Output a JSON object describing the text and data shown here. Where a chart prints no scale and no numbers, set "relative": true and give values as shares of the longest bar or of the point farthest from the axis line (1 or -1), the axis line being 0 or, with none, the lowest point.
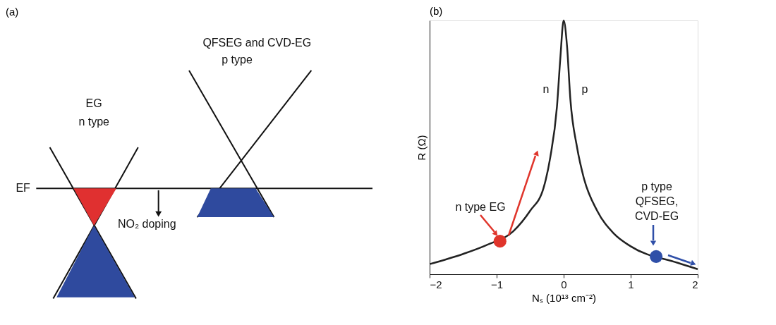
{
  "chart_data": [
    {
      "type": "other",
      "title": "(a)",
      "annotations": [
        "QFSEG and CVD-EG",
        "p type",
        "EG",
        "n type",
        "EF",
        "NO₂ doping"
      ]
    },
    {
      "type": "line",
      "title": "(b)",
      "xlabel": "Nₛ (10¹³ cm⁻²)",
      "ylabel": "R (Ω)",
      "relative": true,
      "xlim": [
        -2,
        2
      ],
      "xticks": [
        {
          "value": -2,
          "label": "−2"
        },
        {
          "value": -1,
          "label": "−1"
        },
        0,
        1,
        2
      ],
      "grid": false,
      "series": [
        {
          "type": "line",
          "color": "#222222",
          "x": [
            -2,
            -1.5,
            -1.15,
            -0.75,
            -0.5,
            -0.3,
            -0.2,
            -0.1,
            -0.05,
            0,
            0.05,
            0.1,
            0.2,
            0.3,
            0.5,
            0.75,
            1,
            1.7,
            2
          ],
          "values": [
            0.04,
            0.08,
            0.115,
            0.17,
            0.25,
            0.34,
            0.46,
            0.66,
            0.85,
            1,
            0.9,
            0.69,
            0.5,
            0.38,
            0.25,
            0.16,
            0.11,
            0.045,
            0.02
          ]
        },
        {
          "type": "scatter",
          "color": "#e0352b",
          "x": [
            -0.95
          ],
          "values": [
            0.13
          ],
          "marker": "circle"
        },
        {
          "type": "scatter",
          "color": "#2f4fa8",
          "x": [
            1.38
          ],
          "values": [
            0.07
          ],
          "marker": "circle"
        }
      ],
      "annotations": [
        "n",
        "p",
        "n type EG",
        "p type",
        "QFSEG,",
        "CVD-EG"
      ]
    }
  ]
}
